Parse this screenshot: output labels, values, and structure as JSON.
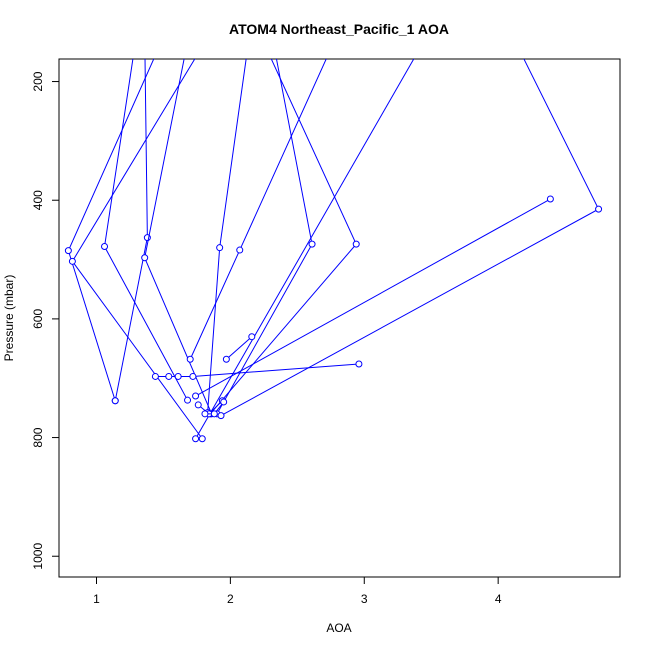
{
  "chart_data": {
    "type": "line",
    "title": "ATOM4 Northeast_Pacific_1 AOA",
    "xlabel": "AOA",
    "ylabel": "Pressure (mbar)",
    "xlim": [
      0.72,
      4.91
    ],
    "ylim": [
      1035,
      162
    ],
    "y_axis_reversed": true,
    "xticks": [
      1,
      2,
      3,
      4
    ],
    "yticks": [
      200,
      400,
      600,
      800,
      1000
    ],
    "grid": false,
    "legend": "none",
    "color": "#0000ff",
    "marker": "open-circle",
    "series": [
      {
        "points": [
          [
            1.36,
            120
          ],
          [
            1.38,
            463
          ],
          [
            1.14,
            738
          ]
        ]
      },
      {
        "points": [
          [
            1.55,
            100
          ],
          [
            0.79,
            485
          ],
          [
            1.14,
            738
          ]
        ]
      },
      {
        "points": [
          [
            1.9,
            100
          ],
          [
            0.82,
            503
          ],
          [
            1.79,
            802
          ]
        ]
      },
      {
        "points": [
          [
            1.3,
            120
          ],
          [
            1.06,
            478
          ],
          [
            1.68,
            737
          ]
        ]
      },
      {
        "points": [
          [
            1.7,
            110
          ],
          [
            1.36,
            497
          ],
          [
            1.86,
            760
          ]
        ]
      },
      {
        "points": [
          [
            2.15,
            110
          ],
          [
            1.92,
            480
          ],
          [
            1.83,
            758
          ]
        ]
      },
      {
        "points": [
          [
            2.3,
            110
          ],
          [
            2.61,
            474
          ],
          [
            1.9,
            760
          ]
        ]
      },
      {
        "points": [
          [
            2.2,
            110
          ],
          [
            2.94,
            474
          ],
          [
            1.85,
            760
          ]
        ]
      },
      {
        "points": [
          [
            2.8,
            120
          ],
          [
            2.07,
            484
          ],
          [
            1.7,
            668
          ]
        ]
      },
      {
        "points": [
          [
            3.4,
            150
          ],
          [
            1.74,
            802
          ]
        ]
      },
      {
        "points": [
          [
            4.1,
            120
          ],
          [
            4.75,
            415
          ],
          [
            1.93,
            763
          ]
        ]
      },
      {
        "points": [
          [
            4.39,
            398
          ],
          [
            1.74,
            730
          ]
        ]
      },
      {
        "points": [
          [
            2.16,
            630
          ],
          [
            1.97,
            668
          ]
        ]
      },
      {
        "points": [
          [
            1.44,
            697
          ],
          [
            1.54,
            697
          ],
          [
            1.61,
            697
          ],
          [
            1.72,
            697
          ],
          [
            2.96,
            676
          ]
        ]
      },
      {
        "points": [
          [
            1.76,
            745
          ],
          [
            1.84,
            760
          ],
          [
            1.94,
            738
          ]
        ]
      },
      {
        "points": [
          [
            1.81,
            760
          ],
          [
            1.88,
            760
          ],
          [
            1.95,
            740
          ]
        ]
      }
    ]
  }
}
